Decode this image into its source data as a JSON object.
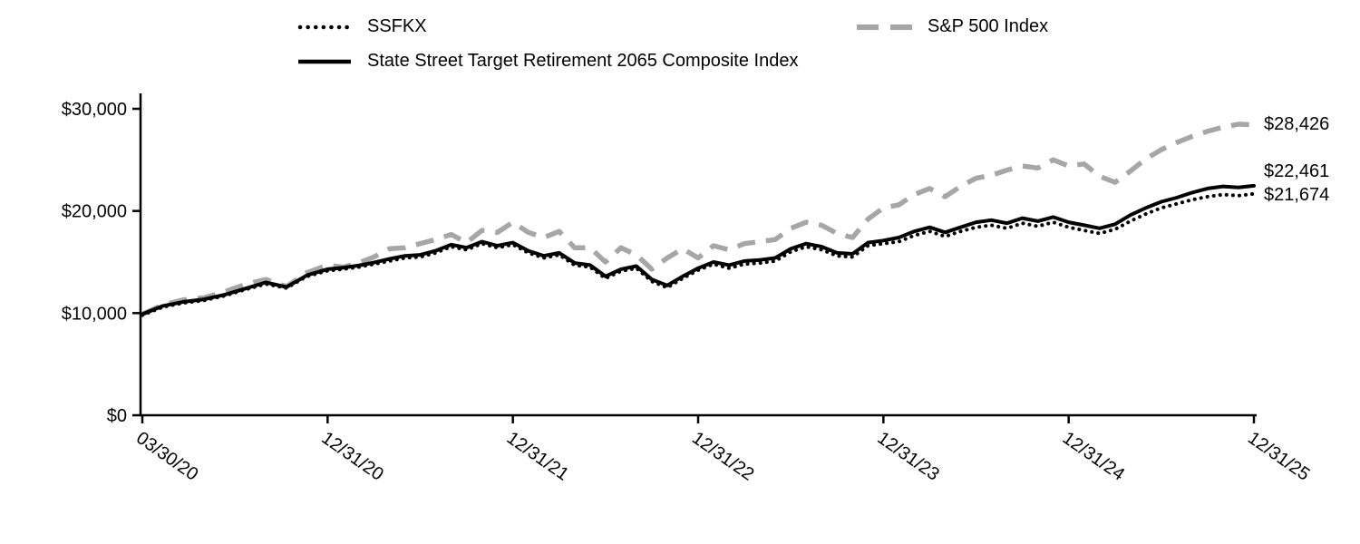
{
  "chart_data": {
    "type": "line",
    "x_unit": "months_since_inception",
    "x_tick_labels": [
      "03/30/20",
      "12/31/20",
      "12/31/21",
      "12/31/22",
      "12/31/23",
      "12/31/24",
      "12/31/25"
    ],
    "x_tick_positions": [
      0,
      9,
      21,
      33,
      45,
      57,
      69
    ],
    "y_ticks": [
      0,
      10000,
      20000,
      30000
    ],
    "y_tick_labels": [
      "$0",
      "$10,000",
      "$20,000",
      "$30,000"
    ],
    "ylim": [
      0,
      31500
    ],
    "grid": "off",
    "legend_position": "top",
    "series": [
      {
        "name": "SSFKX",
        "style": "dotted",
        "color": "#000000",
        "end_label": "$21,674",
        "final_value": 21674,
        "values": [
          9800,
          10600,
          11000,
          11250,
          11700,
          12300,
          12850,
          12450,
          13600,
          14150,
          14300,
          14500,
          14800,
          15100,
          15400,
          15500,
          15900,
          16500,
          16200,
          16800,
          16400,
          16700,
          15900,
          15400,
          15700,
          14700,
          14500,
          13400,
          14100,
          14400,
          13100,
          12500,
          13400,
          14200,
          14800,
          14400,
          14800,
          14900,
          15100,
          16000,
          16500,
          16200,
          15600,
          15500,
          16600,
          16800,
          17000,
          17600,
          18000,
          17500,
          18000,
          18400,
          18600,
          18300,
          18800,
          18500,
          18900,
          18400,
          18100,
          17800,
          18200,
          19000,
          19700,
          20300,
          20700,
          21100,
          21400,
          21600,
          21500,
          21674
        ]
      },
      {
        "name": "State Street Target Retirement 2065 Composite Index",
        "style": "solid",
        "color": "#000000",
        "end_label": "$22,461",
        "final_value": 22461,
        "values": [
          9900,
          10700,
          11100,
          11350,
          11800,
          12400,
          13000,
          12550,
          13700,
          14300,
          14450,
          14650,
          14950,
          15300,
          15600,
          15700,
          16100,
          16700,
          16400,
          17000,
          16600,
          16900,
          16100,
          15600,
          15900,
          14900,
          14700,
          13600,
          14300,
          14600,
          13300,
          12700,
          13600,
          14400,
          15000,
          14700,
          15100,
          15200,
          15400,
          16300,
          16800,
          16500,
          15900,
          15800,
          16900,
          17100,
          17400,
          18000,
          18400,
          17900,
          18400,
          18900,
          19100,
          18800,
          19300,
          19000,
          19400,
          18900,
          18600,
          18300,
          18700,
          19600,
          20300,
          20900,
          21300,
          21800,
          22200,
          22400,
          22300,
          22461
        ]
      },
      {
        "name": "S&P 500 Index",
        "style": "dashed",
        "color": "#a6a6a6",
        "end_label": "$28,426",
        "final_value": 28426,
        "values": [
          9900,
          10800,
          11300,
          11500,
          12100,
          12800,
          13300,
          12600,
          13950,
          14700,
          14500,
          14900,
          15500,
          16300,
          16400,
          16800,
          17200,
          17700,
          16900,
          18100,
          17900,
          18900,
          17900,
          17400,
          18000,
          16400,
          16400,
          15000,
          16400,
          15700,
          14300,
          15400,
          16300,
          15400,
          16600,
          16200,
          16800,
          17000,
          17200,
          18300,
          18900,
          18600,
          17800,
          17400,
          19200,
          20300,
          20600,
          21600,
          22200,
          21400,
          22400,
          23200,
          23500,
          24000,
          24400,
          24200,
          25000,
          24400,
          24600,
          23400,
          22800,
          23900,
          25100,
          26000,
          26700,
          27300,
          27800,
          28200,
          28500,
          28426
        ]
      }
    ]
  }
}
